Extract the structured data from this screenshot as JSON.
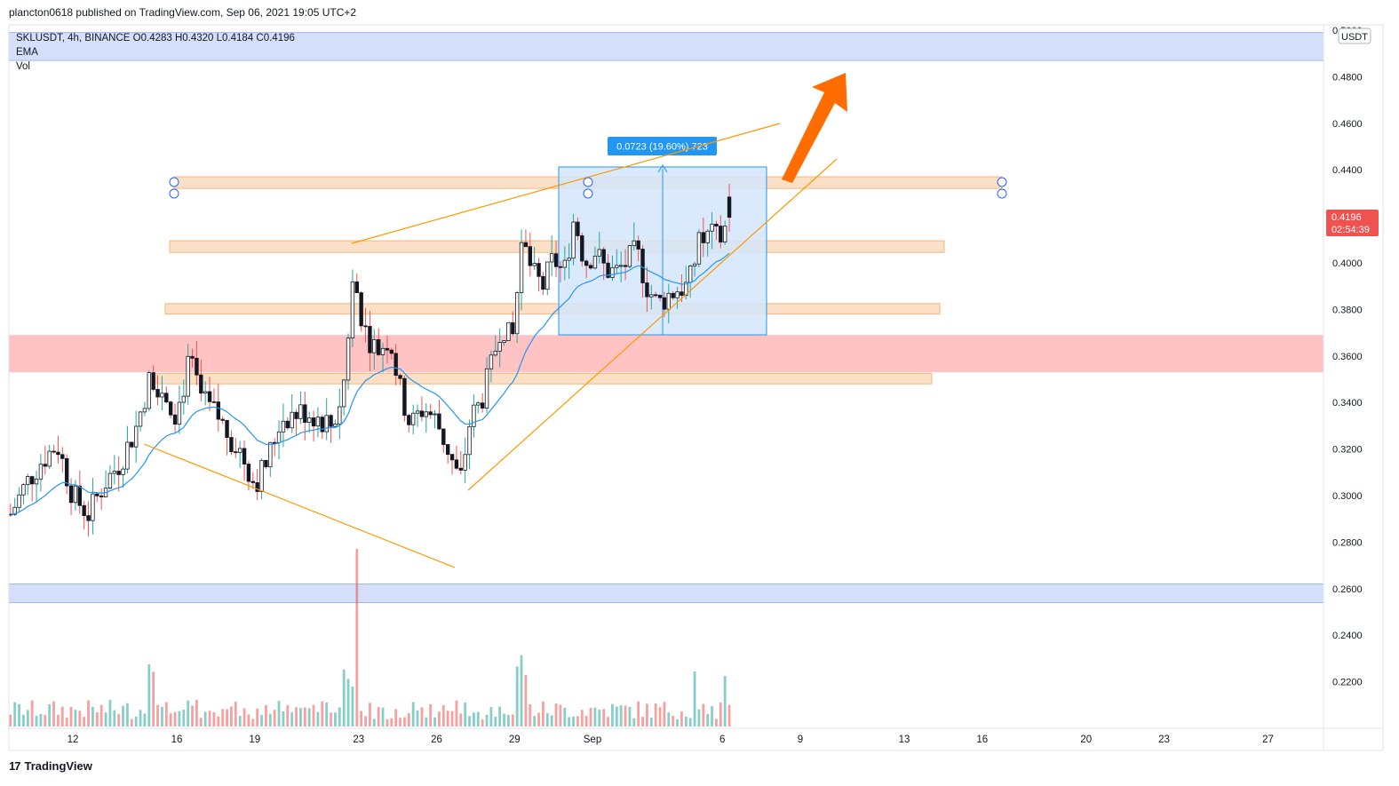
{
  "header": {
    "publisher_line": "plancton0618 published on TradingView.com, Sep 06, 2021 19:05 UTC+2"
  },
  "legend": {
    "symbol_line": "SKLUSDT, 4h, BINANCE  O0.4283  H0.4320  L0.4184  C0.4196",
    "indicator_ema": "EMA",
    "indicator_vol": "Vol"
  },
  "price_axis": {
    "currency": "USDT",
    "ticks": [
      "0.5000",
      "0.4800",
      "0.4600",
      "0.4400",
      "0.4200",
      "0.4000",
      "0.3800",
      "0.3600",
      "0.3400",
      "0.3200",
      "0.3000",
      "0.2800",
      "0.2600",
      "0.2400",
      "0.2200"
    ],
    "last_price": "0.4196",
    "countdown": "02:54:39"
  },
  "measure_label": "0.0723 (19.60%) 723",
  "footer": {
    "brand": "TradingView",
    "logo_glyph": "17"
  },
  "colors": {
    "up": "#26a69a",
    "down": "#ef5350",
    "ema": "#2196f3",
    "orange_line": "#ff9800",
    "arrow": "#ff6d00",
    "blue_zone": "#cfdcfa",
    "red_zone": "#ffbdbd",
    "orange_zone": "#fbdcc0",
    "measure_box": "#d3e6fb",
    "measure_label_bg": "#2196f3"
  },
  "chart_data": {
    "type": "candlestick",
    "symbol": "SKLUSDT",
    "interval": "4h",
    "exchange": "BINANCE",
    "ohlc_last": {
      "open": 0.4283,
      "high": 0.432,
      "low": 0.4184,
      "close": 0.4196
    },
    "x_ticks": [
      {
        "label": "12",
        "day": 12
      },
      {
        "label": "16",
        "day": 16
      },
      {
        "label": "19",
        "day": 19
      },
      {
        "label": "23",
        "day": 23
      },
      {
        "label": "26",
        "day": 26
      },
      {
        "label": "29",
        "day": 29
      },
      {
        "label": "Sep",
        "day": 32
      },
      {
        "label": "6",
        "day": 37
      },
      {
        "label": "9",
        "day": 40
      },
      {
        "label": "13",
        "day": 44
      },
      {
        "label": "16",
        "day": 47
      },
      {
        "label": "20",
        "day": 51
      },
      {
        "label": "23",
        "day": 54
      },
      {
        "label": "27",
        "day": 58
      }
    ],
    "ylim": [
      0.205,
      0.5
    ],
    "daily_close": [
      [
        9.6,
        0.292
      ],
      [
        10.2,
        0.305
      ],
      [
        10.8,
        0.315
      ],
      [
        11.4,
        0.322
      ],
      [
        12.0,
        0.3
      ],
      [
        12.6,
        0.292
      ],
      [
        13.2,
        0.305
      ],
      [
        13.8,
        0.314
      ],
      [
        14.4,
        0.328
      ],
      [
        15.0,
        0.352
      ],
      [
        15.5,
        0.345
      ],
      [
        16.0,
        0.335
      ],
      [
        16.5,
        0.358
      ],
      [
        17.0,
        0.34
      ],
      [
        17.5,
        0.335
      ],
      [
        18.0,
        0.326
      ],
      [
        18.5,
        0.318
      ],
      [
        19.0,
        0.305
      ],
      [
        19.5,
        0.315
      ],
      [
        20.0,
        0.333
      ],
      [
        20.5,
        0.335
      ],
      [
        21.0,
        0.336
      ],
      [
        21.5,
        0.333
      ],
      [
        22.0,
        0.33
      ],
      [
        22.4,
        0.345
      ],
      [
        22.8,
        0.395
      ],
      [
        23.2,
        0.372
      ],
      [
        23.7,
        0.362
      ],
      [
        24.2,
        0.368
      ],
      [
        24.6,
        0.345
      ],
      [
        25.0,
        0.33
      ],
      [
        25.5,
        0.338
      ],
      [
        26.0,
        0.332
      ],
      [
        26.5,
        0.318
      ],
      [
        26.9,
        0.305
      ],
      [
        27.3,
        0.333
      ],
      [
        27.7,
        0.34
      ],
      [
        28.1,
        0.355
      ],
      [
        28.5,
        0.375
      ],
      [
        28.9,
        0.365
      ],
      [
        29.3,
        0.41
      ],
      [
        29.7,
        0.395
      ],
      [
        30.1,
        0.39
      ],
      [
        30.5,
        0.402
      ],
      [
        30.9,
        0.395
      ],
      [
        31.3,
        0.42
      ],
      [
        31.7,
        0.4
      ],
      [
        32.1,
        0.405
      ],
      [
        32.5,
        0.397
      ],
      [
        32.9,
        0.396
      ],
      [
        33.3,
        0.4
      ],
      [
        33.7,
        0.405
      ],
      [
        34.1,
        0.39
      ],
      [
        34.5,
        0.382
      ],
      [
        34.9,
        0.386
      ],
      [
        35.3,
        0.389
      ],
      [
        35.7,
        0.39
      ],
      [
        36.1,
        0.408
      ],
      [
        36.5,
        0.412
      ],
      [
        36.9,
        0.41
      ],
      [
        37.1,
        0.415
      ],
      [
        37.35,
        0.4196
      ]
    ],
    "series": [
      {
        "name": "EMA",
        "type": "line"
      },
      {
        "name": "Vol",
        "type": "bar"
      }
    ],
    "measure": {
      "change": 0.0723,
      "percent": 19.6,
      "bars": 723,
      "from_price": 0.3688,
      "to_price": 0.4411
    },
    "zones": [
      {
        "kind": "resistance-blue",
        "from": 0.487,
        "to": 0.499
      },
      {
        "kind": "orange",
        "from": 0.432,
        "to": 0.437
      },
      {
        "kind": "orange",
        "from": 0.4045,
        "to": 0.4095
      },
      {
        "kind": "orange",
        "from": 0.378,
        "to": 0.3825
      },
      {
        "kind": "supply-red",
        "from": 0.353,
        "to": 0.369
      },
      {
        "kind": "orange",
        "from": 0.348,
        "to": 0.3525
      },
      {
        "kind": "support-blue",
        "from": 0.254,
        "to": 0.262
      }
    ]
  }
}
